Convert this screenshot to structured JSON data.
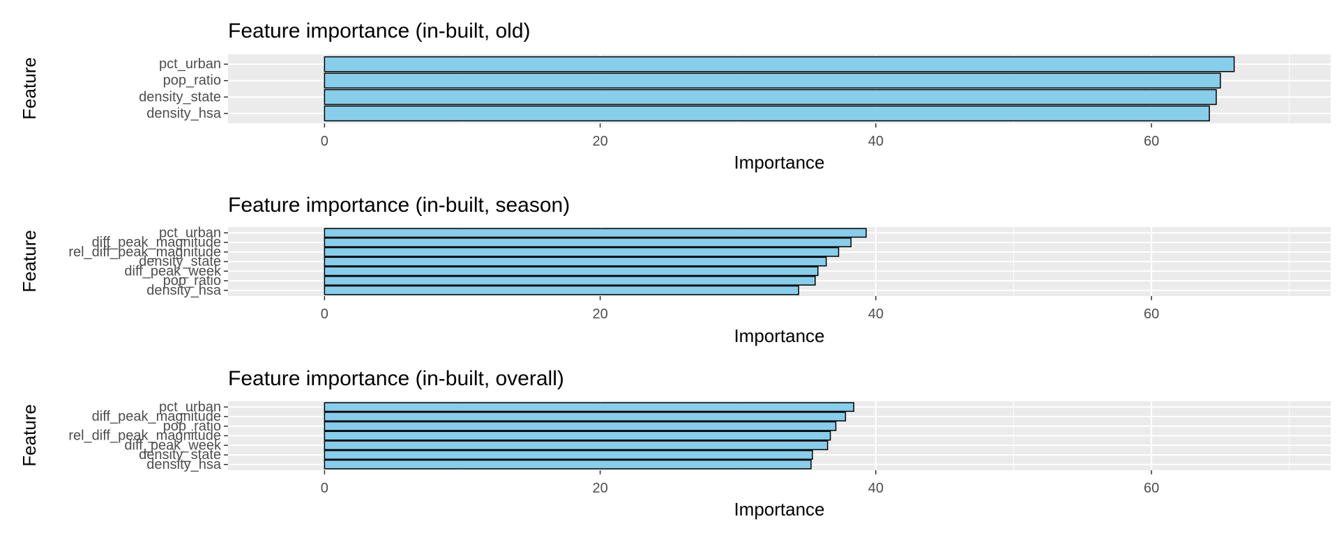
{
  "chart_data": [
    {
      "type": "bar",
      "orientation": "horizontal",
      "title": "Feature importance (in-built, old)",
      "xlabel": "Importance",
      "ylabel": "Feature",
      "xlim": [
        -7,
        73
      ],
      "xticks": [
        0,
        20,
        40,
        60
      ],
      "grid": true,
      "categories": [
        "pct_urban",
        "pop_ratio",
        "density_state",
        "density_hsa"
      ],
      "values": [
        66,
        65,
        64.7,
        64.2
      ],
      "bar_color": "#87CEEB",
      "bar_outline": "#000000"
    },
    {
      "type": "bar",
      "orientation": "horizontal",
      "title": "Feature importance (in-built, season)",
      "xlabel": "Importance",
      "ylabel": "Feature",
      "xlim": [
        -7,
        73
      ],
      "xticks": [
        0,
        20,
        40,
        60
      ],
      "grid": true,
      "categories": [
        "pct_urban",
        "diff_peak_magnitude",
        "rel_diff_peak_magnitude",
        "density_state",
        "diff_peak_week",
        "pop_ratio",
        "density_hsa"
      ],
      "values": [
        39.3,
        38.2,
        37.3,
        36.4,
        35.8,
        35.6,
        34.4
      ],
      "bar_color": "#87CEEB",
      "bar_outline": "#000000"
    },
    {
      "type": "bar",
      "orientation": "horizontal",
      "title": "Feature importance (in-built, overall)",
      "xlabel": "Importance",
      "ylabel": "Feature",
      "xlim": [
        -7,
        73
      ],
      "xticks": [
        0,
        20,
        40,
        60
      ],
      "grid": true,
      "categories": [
        "pct_urban",
        "diff_peak_magnitude",
        "pop_ratio",
        "rel_diff_peak_magnitude",
        "diff_peak_week",
        "density_state",
        "density_hsa"
      ],
      "values": [
        38.4,
        37.8,
        37.1,
        36.7,
        36.5,
        35.4,
        35.3
      ],
      "bar_color": "#87CEEB",
      "bar_outline": "#000000"
    }
  ],
  "colors": {
    "panel_background": "#EBEBEB",
    "grid_line": "#FFFFFF",
    "tick_label": "#4D4D4D",
    "text": "#000000"
  }
}
